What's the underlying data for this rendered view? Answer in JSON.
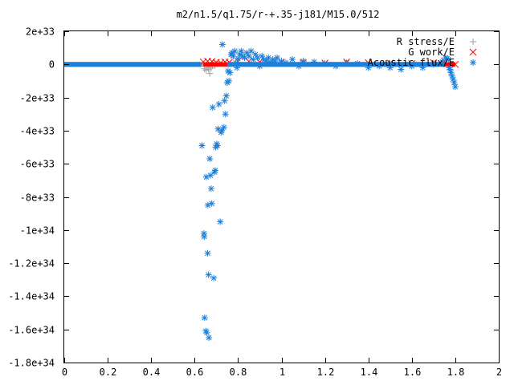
{
  "chart_data": {
    "type": "scatter",
    "title": "m2/n1.5/q1.75/r-+.35-j181/M15.0/512",
    "xlabel": "",
    "ylabel": "",
    "xlim": [
      0,
      2
    ],
    "ylim": [
      -1.8e+34,
      2e+33
    ],
    "x_ticks": [
      0,
      0.2,
      0.4,
      0.6,
      0.8,
      1,
      1.2,
      1.4,
      1.6,
      1.8,
      2
    ],
    "x_tick_labels": [
      "0",
      "0.2",
      "0.4",
      "0.6",
      "0.8",
      "1",
      "1.2",
      "1.4",
      "1.6",
      "1.8",
      "2"
    ],
    "y_ticks": [
      2e+33,
      0,
      -2e+33,
      -4e+33,
      -6e+33,
      -8e+33,
      -1e+34,
      -1.2e+34,
      -1.4e+34,
      -1.6e+34,
      -1.8e+34
    ],
    "y_tick_labels": [
      "2e+33",
      "0",
      "-2e+33",
      "-4e+33",
      "-6e+33",
      "-8e+33",
      "-1e+34",
      "-1.2e+34",
      "-1.4e+34",
      "-1.6e+34",
      "-1.8e+34"
    ],
    "grid": false,
    "legend_position": "top-right",
    "series": [
      {
        "name": "R stress/E",
        "marker": "plus",
        "color": "#a0a0a0",
        "segments": [
          {
            "x_range": [
              0.0,
              0.63
            ],
            "y": 0
          },
          {
            "x_range": [
              0.63,
              1.8
            ],
            "y": 0
          }
        ],
        "x": [
          0.645,
          0.652,
          0.658,
          0.664,
          0.67,
          0.676,
          0.682,
          0.688,
          0.694,
          0.7
        ],
        "y": [
          -2.6e+32,
          -3.5e+32,
          -1.8e+32,
          -3e+32,
          -5.5e+32,
          -2.2e+32,
          -1e+32,
          5e+31,
          -8e+31,
          3e+31
        ]
      },
      {
        "name": "G work/E",
        "marker": "cross",
        "color": "#ff0000",
        "segments": [
          {
            "x_range": [
              0.64,
              1.8
            ],
            "y": 0
          }
        ],
        "x": [
          0.64,
          0.66,
          0.68,
          0.7,
          0.72,
          0.74,
          0.76,
          0.8,
          0.85,
          0.9,
          1.0,
          1.1,
          1.2,
          1.3,
          1.4,
          1.5,
          1.6,
          1.7,
          1.75,
          1.8
        ],
        "y": [
          1.5e+32,
          2e+32,
          1.8e+32,
          1.2e+32,
          1e+32,
          1.5e+32,
          1.3e+32,
          2e+32,
          1.8e+32,
          1.5e+32,
          1.2e+32,
          1e+32,
          8e+31,
          1.5e+32,
          1e+32,
          8e+31,
          5e+31,
          1e+32,
          2e+32,
          0
        ]
      },
      {
        "name": "Acoustic flux/E",
        "marker": "star",
        "color": "#1e7fd8",
        "segments": [
          {
            "x_range": [
              0.0,
              0.63
            ],
            "y": 0
          },
          {
            "x_range": [
              0.75,
              1.75
            ],
            "y": 0
          }
        ],
        "x": [
          0.634,
          0.643,
          0.644,
          0.646,
          0.652,
          0.654,
          0.656,
          0.66,
          0.661,
          0.664,
          0.666,
          0.67,
          0.673,
          0.676,
          0.679,
          0.683,
          0.688,
          0.692,
          0.695,
          0.697,
          0.702,
          0.705,
          0.708,
          0.712,
          0.718,
          0.722,
          0.725,
          0.728,
          0.735,
          0.738,
          0.742,
          0.746,
          0.75,
          0.754,
          0.758,
          0.763,
          0.768,
          0.772,
          0.778,
          0.785,
          0.79,
          0.795,
          0.8,
          0.808,
          0.815,
          0.82,
          0.83,
          0.84,
          0.85,
          0.86,
          0.87,
          0.88,
          0.89,
          0.9,
          0.91,
          0.92,
          0.93,
          0.94,
          0.95,
          0.96,
          0.97,
          0.98,
          1.0,
          1.02,
          1.05,
          1.08,
          1.1,
          1.15,
          1.2,
          1.25,
          1.3,
          1.35,
          1.4,
          1.45,
          1.5,
          1.55,
          1.6,
          1.65,
          1.7,
          1.74,
          1.755,
          1.762,
          1.768,
          1.772,
          1.776,
          1.78,
          1.785,
          1.79,
          1.795,
          1.8
        ],
        "y": [
          -4.9e+33,
          -1.02e+34,
          -1.04e+34,
          -1.53e+34,
          -1.61e+34,
          -6.8e+33,
          -1.62e+34,
          -1.14e+34,
          -8.5e+33,
          -1.27e+34,
          -1.65e+34,
          -5.7e+33,
          -6.7e+33,
          -7.5e+33,
          -8.4e+33,
          -2.6e+33,
          -1.29e+34,
          -6.5e+33,
          -6.4e+33,
          -5e+33,
          -4.8e+33,
          -4.9e+33,
          -3.9e+33,
          -2.4e+33,
          -9.5e+33,
          -4.1e+33,
          -4e+33,
          1.2e+33,
          -3.8e+33,
          -2.2e+33,
          -3e+33,
          -1.9e+33,
          -1.1e+33,
          -4e+32,
          -1e+33,
          -5e+32,
          6e+32,
          7e+32,
          5e+32,
          8e+32,
          1e+32,
          -2e+32,
          3.5e+32,
          6e+32,
          8e+32,
          5e+32,
          4e+32,
          7e+32,
          5e+32,
          8e+32,
          3e+32,
          6e+32,
          4e+32,
          -1e+32,
          5e+32,
          3e+32,
          2e+32,
          4e+32,
          1.5e+32,
          3e+32,
          2e+32,
          4e+32,
          2e+32,
          1e+32,
          3e+32,
          -1e+32,
          2e+32,
          1.5e+32,
          5e+31,
          -1e+32,
          1e+32,
          5e+31,
          -2e+32,
          -1e+32,
          -2e+32,
          -3e+32,
          -1e+32,
          -2e+32,
          0,
          1.5e+32,
          4e+32,
          3.5e+32,
          3e+32,
          -2e+32,
          -3e+32,
          -5e+32,
          -7e+32,
          -9e+32,
          -1.1e+33,
          -1.35e+33
        ]
      }
    ]
  }
}
